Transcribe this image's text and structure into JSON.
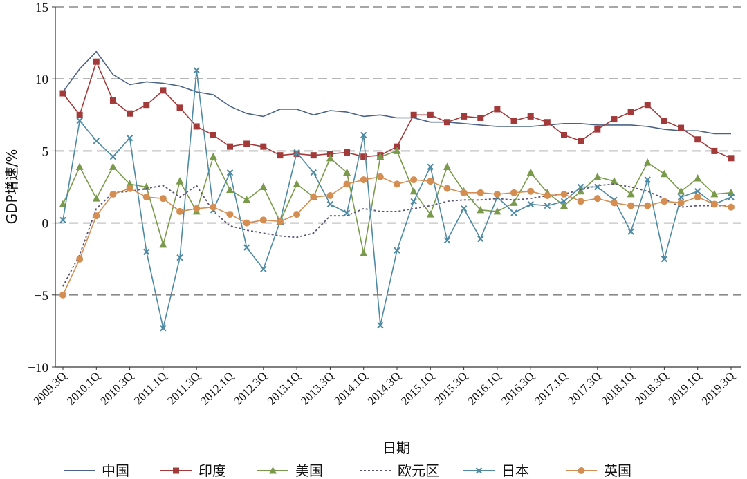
{
  "chart_data": {
    "type": "line",
    "title": "",
    "xlabel": "日期",
    "ylabel": "GDP增速/%",
    "ylim": [
      -10,
      15
    ],
    "yticks": [
      "15",
      "10",
      "5",
      "0",
      "−5",
      "−10"
    ],
    "grid": "horizontal-dashed",
    "legend_position": "bottom",
    "x": [
      "2009.3Q",
      "2009.4Q",
      "2010.1Q",
      "2010.2Q",
      "2010.3Q",
      "2010.4Q",
      "2011.1Q",
      "2011.2Q",
      "2011.3Q",
      "2011.4Q",
      "2012.1Q",
      "2012.2Q",
      "2012.3Q",
      "2012.4Q",
      "2013.1Q",
      "2013.2Q",
      "2013.3Q",
      "2013.4Q",
      "2014.1Q",
      "2014.2Q",
      "2014.3Q",
      "2014.4Q",
      "2015.1Q",
      "2015.2Q",
      "2015.3Q",
      "2015.4Q",
      "2016.1Q",
      "2016.2Q",
      "2016.3Q",
      "2016.4Q",
      "2017.1Q",
      "2017.2Q",
      "2017.3Q",
      "2017.4Q",
      "2018.1Q",
      "2018.2Q",
      "2018.3Q",
      "2018.4Q",
      "2019.1Q",
      "2019.2Q",
      "2019.3Q"
    ],
    "x_tick_labels": [
      "2009.3Q",
      "2010.1Q",
      "2010.3Q",
      "2011.1Q",
      "2011.3Q",
      "2012.1Q",
      "2012.3Q",
      "2013.1Q",
      "2013.3Q",
      "2014.1Q",
      "2014.3Q",
      "2015.1Q",
      "2015.3Q",
      "2016.1Q",
      "2016.3Q",
      "2017.1Q",
      "2017.3Q",
      "2018.1Q",
      "2018.3Q",
      "2019.1Q",
      "2019.3Q"
    ],
    "series": [
      {
        "name": "中国",
        "color": "#4a6386",
        "marker": "none",
        "dash": "solid",
        "values": [
          9.1,
          10.7,
          11.9,
          10.3,
          9.6,
          9.8,
          9.7,
          9.5,
          9.1,
          8.9,
          8.1,
          7.6,
          7.4,
          7.9,
          7.9,
          7.5,
          7.8,
          7.7,
          7.4,
          7.5,
          7.3,
          7.3,
          7.0,
          7.0,
          6.9,
          6.8,
          6.7,
          6.7,
          6.7,
          6.8,
          6.9,
          6.9,
          6.8,
          6.8,
          6.8,
          6.7,
          6.5,
          6.4,
          6.4,
          6.2,
          6.2
        ]
      },
      {
        "name": "印度",
        "color": "#a33a3a",
        "marker": "square",
        "dash": "solid",
        "values": [
          9.0,
          7.5,
          11.2,
          8.5,
          7.6,
          8.2,
          9.2,
          8.0,
          6.7,
          6.1,
          5.3,
          5.5,
          5.3,
          4.7,
          4.8,
          4.7,
          4.8,
          4.9,
          4.6,
          4.7,
          5.3,
          7.5,
          7.5,
          7.0,
          7.4,
          7.3,
          7.9,
          7.1,
          7.4,
          7.0,
          6.1,
          5.7,
          6.5,
          7.2,
          7.7,
          8.2,
          7.1,
          6.6,
          5.8,
          5.0,
          4.5
        ]
      },
      {
        "name": "美国",
        "color": "#7a9a4b",
        "marker": "triangle",
        "dash": "solid",
        "values": [
          1.3,
          3.9,
          1.7,
          3.9,
          2.7,
          2.5,
          -1.5,
          2.9,
          0.8,
          4.6,
          2.3,
          1.6,
          2.5,
          0.1,
          2.7,
          1.8,
          4.5,
          3.5,
          -2.1,
          4.6,
          5.0,
          2.2,
          0.6,
          3.9,
          2.2,
          0.9,
          0.8,
          1.4,
          3.5,
          2.1,
          1.2,
          2.2,
          3.2,
          2.9,
          2.0,
          4.2,
          3.4,
          2.2,
          3.1,
          2.0,
          2.1
        ]
      },
      {
        "name": "欧元区",
        "color": "#5b5377",
        "marker": "none",
        "dash": "dotted",
        "values": [
          -4.4,
          -2.2,
          1.0,
          2.1,
          2.2,
          2.4,
          2.6,
          1.8,
          2.6,
          0.8,
          -0.2,
          -0.5,
          -0.7,
          -0.9,
          -1.0,
          -0.7,
          0.5,
          0.5,
          1.0,
          0.8,
          0.8,
          1.0,
          1.2,
          1.5,
          1.6,
          1.6,
          1.7,
          1.6,
          1.7,
          1.9,
          2.0,
          2.3,
          2.6,
          2.7,
          2.5,
          2.2,
          1.7,
          1.1,
          1.2,
          1.2,
          1.2
        ]
      },
      {
        "name": "日本",
        "color": "#4e8aa3",
        "marker": "x",
        "dash": "solid",
        "values": [
          0.2,
          7.1,
          5.7,
          4.6,
          5.9,
          -2.0,
          -7.3,
          -2.4,
          10.6,
          0.9,
          3.5,
          -1.7,
          -3.2,
          0.1,
          4.9,
          3.5,
          1.3,
          0.7,
          6.1,
          -7.1,
          -1.9,
          1.5,
          3.9,
          -1.2,
          1.0,
          -1.1,
          1.8,
          0.7,
          1.3,
          1.2,
          1.5,
          2.5,
          2.5,
          1.6,
          -0.6,
          3.0,
          -2.5,
          1.8,
          2.2,
          1.3,
          1.8
        ]
      },
      {
        "name": "英国",
        "color": "#d48e52",
        "marker": "circle",
        "dash": "solid",
        "values": [
          -5.0,
          -2.5,
          0.5,
          2.0,
          2.4,
          1.8,
          1.7,
          0.8,
          1.0,
          1.1,
          0.6,
          0.0,
          0.2,
          0.1,
          0.6,
          1.8,
          1.9,
          2.7,
          3.0,
          3.2,
          2.7,
          3.0,
          2.9,
          2.4,
          2.1,
          2.1,
          2.0,
          2.1,
          2.2,
          1.9,
          2.0,
          1.5,
          1.7,
          1.4,
          1.2,
          1.2,
          1.5,
          1.4,
          1.8,
          1.3,
          1.1
        ]
      }
    ]
  }
}
